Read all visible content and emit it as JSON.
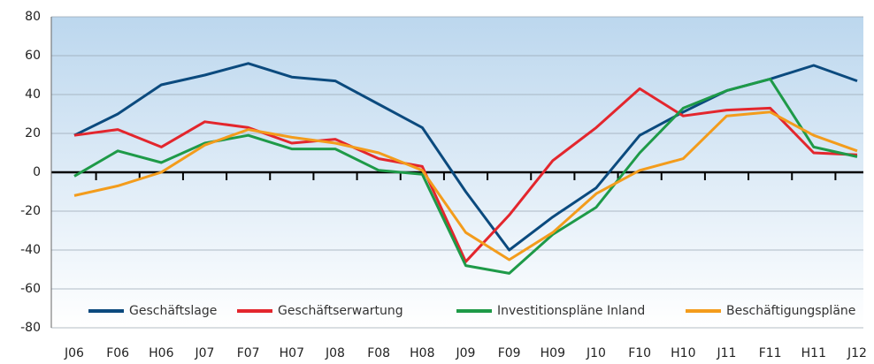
{
  "chart_data": {
    "type": "line",
    "categories": [
      "J06",
      "F06",
      "H06",
      "J07",
      "F07",
      "H07",
      "J08",
      "F08",
      "H08",
      "J09",
      "F09",
      "H09",
      "J10",
      "F10",
      "H10",
      "J11",
      "F11",
      "H11",
      "J12"
    ],
    "series": [
      {
        "name": "Geschäftslage",
        "color": "#0b4a7e",
        "values": [
          19,
          30,
          45,
          50,
          56,
          49,
          47,
          35,
          23,
          -10,
          -40,
          -23,
          -8,
          19,
          31,
          42,
          48,
          55,
          47
        ]
      },
      {
        "name": "Geschäftserwartung",
        "color": "#e3262d",
        "values": [
          19,
          22,
          13,
          26,
          23,
          15,
          17,
          7,
          3,
          -46,
          -22,
          6,
          23,
          43,
          29,
          32,
          33,
          10,
          9
        ]
      },
      {
        "name": "Investitionspläne Inland",
        "color": "#1e9a48",
        "values": [
          -2,
          11,
          5,
          15,
          19,
          12,
          12,
          1,
          -1,
          -48,
          -52,
          -32,
          -18,
          10,
          33,
          42,
          48,
          13,
          8
        ]
      },
      {
        "name": "Beschäftigungspläne",
        "color": "#f39c1c",
        "values": [
          -12,
          -7,
          0,
          14,
          22,
          18,
          15,
          10,
          1,
          -31,
          -45,
          -31,
          -11,
          1,
          7,
          29,
          31,
          19,
          11
        ]
      }
    ],
    "ylim": [
      -80,
      80
    ],
    "yticks": [
      -80,
      -60,
      -40,
      -20,
      0,
      20,
      40,
      60,
      80
    ],
    "grid": true,
    "legend": "bottom"
  }
}
